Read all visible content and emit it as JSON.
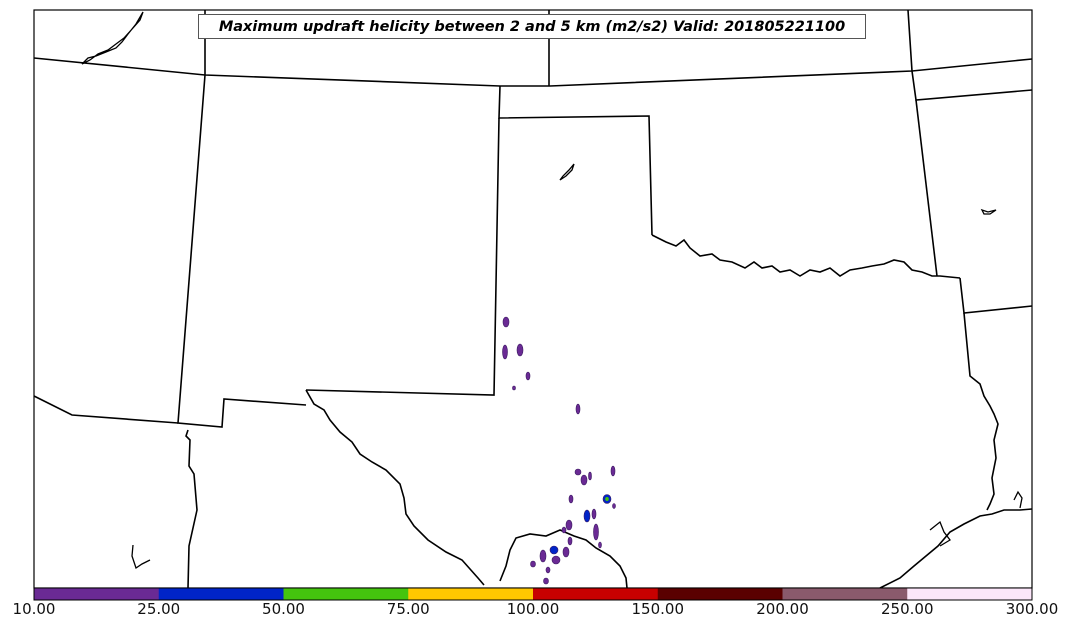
{
  "title": "Maximum updraft helicity between 2 and 5 km (m2/s2) Valid: 201805221100",
  "colorbar": {
    "tick_labels": [
      "10.00",
      "25.00",
      "50.00",
      "75.00",
      "100.00",
      "150.00",
      "200.00",
      "250.00",
      "300.00"
    ],
    "colors": [
      "#6a2a94",
      "#0024c8",
      "#44c40e",
      "#ffc800",
      "#c80000",
      "#5a0000",
      "#8a5a6c",
      "#fce6fa"
    ]
  }
}
